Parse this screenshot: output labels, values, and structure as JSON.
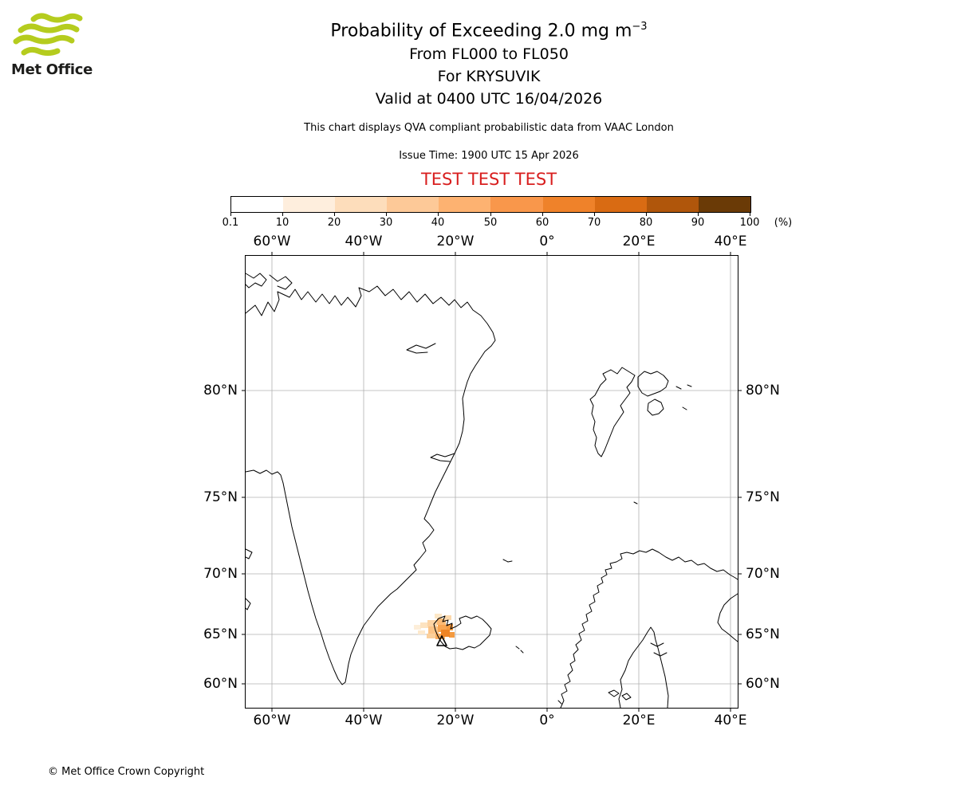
{
  "logo": {
    "brand": "Met Office",
    "wave_color": "#b5cc1e"
  },
  "header": {
    "title_main": "Probability of Exceeding 2.0 mg m",
    "title_sup": "−3",
    "subtitle_flight_levels": "From FL000 to FL050",
    "subtitle_volcano": "For KRYSUVIK",
    "subtitle_valid": "Valid at 0400 UTC 16/04/2026",
    "disclaimer": "This chart displays QVA compliant probabilistic data from VAAC London",
    "issue_time": "Issue Time: 1900 UTC 15 Apr 2026",
    "test_banner": "TEST TEST TEST",
    "test_color": "#d81e1e"
  },
  "colorbar": {
    "tick_labels": [
      "0.1",
      "10",
      "20",
      "30",
      "40",
      "50",
      "60",
      "70",
      "80",
      "90",
      "100"
    ],
    "unit_label": "(%)",
    "segment_colors": [
      "#ffffff",
      "#feeedd",
      "#fdddbb",
      "#fdc998",
      "#fdb271",
      "#f9974b",
      "#ef822a",
      "#d96b13",
      "#b0560b",
      "#6a3a06"
    ]
  },
  "map": {
    "lon_labels": [
      "60°W",
      "40°W",
      "20°W",
      "0°",
      "20°E",
      "40°E"
    ],
    "lat_labels": [
      "80°N",
      "75°N",
      "70°N",
      "65°N",
      "60°N"
    ],
    "volcano_marker_points": "240,489 246,477 252,489",
    "ash_cells": [
      [
        211,
        463,
        9,
        6,
        "#fdeed9"
      ],
      [
        216,
        470,
        9,
        5,
        "#fde9cd"
      ],
      [
        219,
        460,
        11,
        7,
        "#fde3c0"
      ],
      [
        227,
        474,
        11,
        6,
        "#fbcf9b"
      ],
      [
        228,
        457,
        12,
        8,
        "#fdd4a4"
      ],
      [
        229,
        465,
        13,
        9,
        "#fcc487"
      ],
      [
        237,
        449,
        9,
        6,
        "#fde7c6"
      ],
      [
        240,
        455,
        11,
        8,
        "#fcba74"
      ],
      [
        249,
        451,
        9,
        6,
        "#fcd9ad"
      ],
      [
        241,
        463,
        12,
        9,
        "#f9a551"
      ],
      [
        238,
        474,
        12,
        7,
        "#f7ab5d"
      ],
      [
        252,
        462,
        8,
        8,
        "#f59b41"
      ],
      [
        255,
        472,
        7,
        7,
        "#f39a40"
      ],
      [
        245,
        469,
        11,
        9,
        "#ef8424"
      ]
    ]
  },
  "footer": {
    "copyright": "© Met Office Crown Copyright"
  }
}
